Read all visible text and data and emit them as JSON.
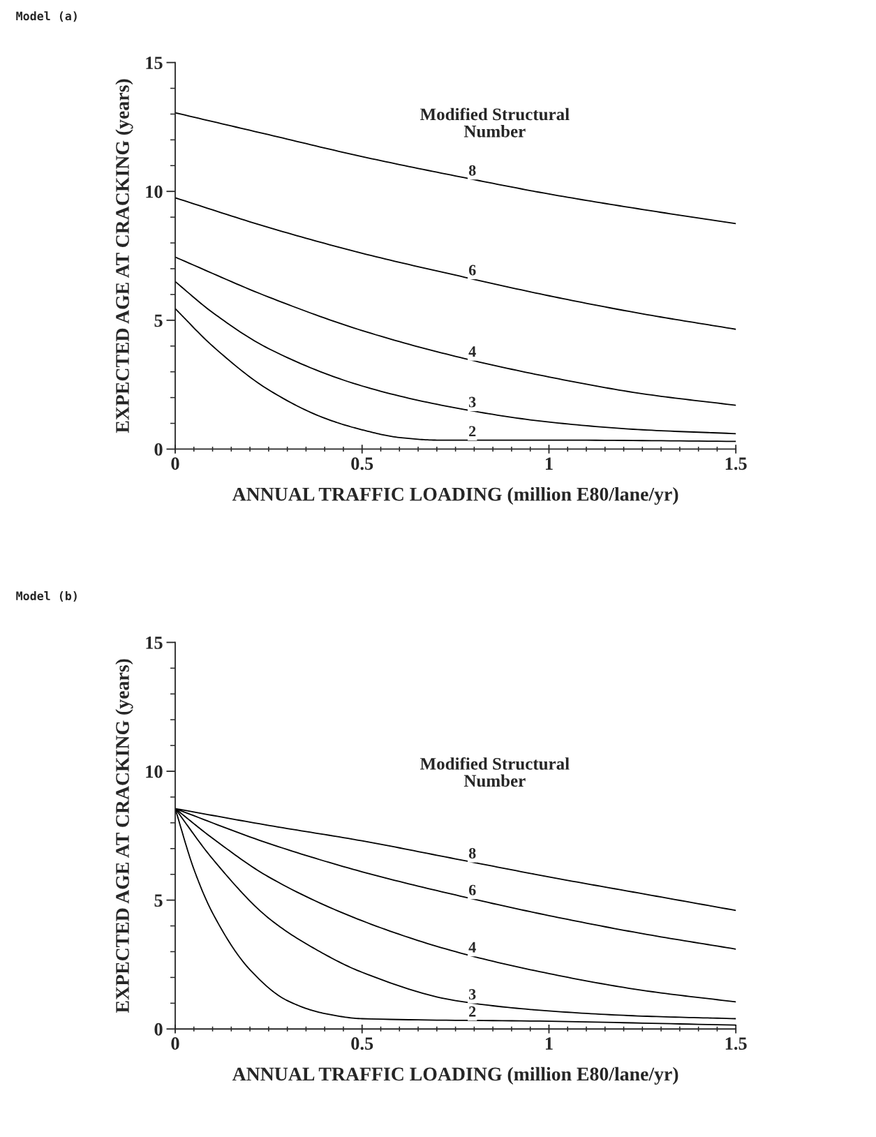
{
  "chart_data": [
    {
      "type": "line",
      "title": "Model (a)",
      "xlabel": "ANNUAL TRAFFIC LOADING (million E80/lane/yr)",
      "ylabel": "EXPECTED AGE AT CRACKING (years)",
      "xlim": [
        0,
        1.5
      ],
      "ylim": [
        0,
        15
      ],
      "xticks": [
        0,
        {
          "value": 0.05,
          "label": null
        },
        {
          "value": 0.1,
          "label": null
        },
        {
          "value": 0.15,
          "label": null
        },
        {
          "value": 0.2,
          "label": null
        },
        {
          "value": 0.25,
          "label": null
        },
        {
          "value": 0.3,
          "label": null
        },
        {
          "value": 0.35,
          "label": null
        },
        {
          "value": 0.4,
          "label": null
        },
        {
          "value": 0.45,
          "label": null
        },
        0.5,
        {
          "value": 0.55,
          "label": null
        },
        {
          "value": 0.6,
          "label": null
        },
        {
          "value": 0.65,
          "label": null
        },
        {
          "value": 0.7,
          "label": null
        },
        {
          "value": 0.75,
          "label": null
        },
        {
          "value": 0.8,
          "label": null
        },
        {
          "value": 0.85,
          "label": null
        },
        {
          "value": 0.9,
          "label": null
        },
        {
          "value": 0.95,
          "label": null
        },
        1,
        {
          "value": 1.05,
          "label": null
        },
        {
          "value": 1.1,
          "label": null
        },
        {
          "value": 1.15,
          "label": null
        },
        {
          "value": 1.2,
          "label": null
        },
        {
          "value": 1.25,
          "label": null
        },
        {
          "value": 1.3,
          "label": null
        },
        {
          "value": 1.35,
          "label": null
        },
        {
          "value": 1.4,
          "label": null
        },
        {
          "value": 1.45,
          "label": null
        },
        1.5
      ],
      "yticks": [
        0,
        {
          "value": 1,
          "label": null
        },
        {
          "value": 2,
          "label": null
        },
        {
          "value": 3,
          "label": null
        },
        {
          "value": 4,
          "label": null
        },
        5,
        {
          "value": 6,
          "label": null
        },
        {
          "value": 7,
          "label": null
        },
        {
          "value": 8,
          "label": null
        },
        {
          "value": 9,
          "label": null
        },
        10,
        {
          "value": 11,
          "label": null
        },
        {
          "value": 12,
          "label": null
        },
        {
          "value": 13,
          "label": null
        },
        {
          "value": 14,
          "label": null
        },
        15
      ],
      "grid": false,
      "legend": false,
      "series": [
        {
          "name": "8",
          "color": "#000000",
          "x": [
            0,
            0.25,
            0.5,
            0.75,
            1.0,
            1.25,
            1.5
          ],
          "values": [
            13.05,
            12.2,
            11.35,
            10.6,
            9.9,
            9.3,
            8.75
          ]
        },
        {
          "name": "6",
          "color": "#000000",
          "x": [
            0,
            0.25,
            0.5,
            0.75,
            1.0,
            1.25,
            1.5
          ],
          "values": [
            9.75,
            8.6,
            7.6,
            6.75,
            5.95,
            5.25,
            4.65
          ]
        },
        {
          "name": "4",
          "color": "#000000",
          "x": [
            0,
            0.25,
            0.5,
            0.75,
            1.0,
            1.25,
            1.5
          ],
          "values": [
            7.45,
            5.9,
            4.6,
            3.6,
            2.8,
            2.15,
            1.7
          ]
        },
        {
          "name": "3",
          "color": "#000000",
          "x": [
            0,
            0.1,
            0.25,
            0.5,
            0.75,
            1.0,
            1.25,
            1.5
          ],
          "values": [
            6.5,
            5.3,
            3.9,
            2.45,
            1.6,
            1.05,
            0.75,
            0.6
          ]
        },
        {
          "name": "2",
          "color": "#000000",
          "x": [
            0,
            0.1,
            0.25,
            0.4,
            0.5,
            0.6,
            0.7,
            1.0,
            1.5
          ],
          "values": [
            5.45,
            4.0,
            2.3,
            1.2,
            0.75,
            0.45,
            0.35,
            0.35,
            0.3
          ]
        }
      ],
      "annotations": [
        "Modified Structural\nNumber"
      ]
    },
    {
      "type": "line",
      "title": "Model (b)",
      "xlabel": "ANNUAL TRAFFIC LOADING (million E80/lane/yr)",
      "ylabel": "EXPECTED AGE AT CRACKING (years)",
      "xlim": [
        0,
        1.5
      ],
      "ylim": [
        0,
        15
      ],
      "xticks": [
        0,
        {
          "value": 0.05,
          "label": null
        },
        {
          "value": 0.1,
          "label": null
        },
        {
          "value": 0.15,
          "label": null
        },
        {
          "value": 0.2,
          "label": null
        },
        {
          "value": 0.25,
          "label": null
        },
        {
          "value": 0.3,
          "label": null
        },
        {
          "value": 0.35,
          "label": null
        },
        {
          "value": 0.4,
          "label": null
        },
        {
          "value": 0.45,
          "label": null
        },
        0.5,
        {
          "value": 0.55,
          "label": null
        },
        {
          "value": 0.6,
          "label": null
        },
        {
          "value": 0.65,
          "label": null
        },
        {
          "value": 0.7,
          "label": null
        },
        {
          "value": 0.75,
          "label": null
        },
        {
          "value": 0.8,
          "label": null
        },
        {
          "value": 0.85,
          "label": null
        },
        {
          "value": 0.9,
          "label": null
        },
        {
          "value": 0.95,
          "label": null
        },
        1,
        {
          "value": 1.05,
          "label": null
        },
        {
          "value": 1.1,
          "label": null
        },
        {
          "value": 1.15,
          "label": null
        },
        {
          "value": 1.2,
          "label": null
        },
        {
          "value": 1.25,
          "label": null
        },
        {
          "value": 1.3,
          "label": null
        },
        {
          "value": 1.35,
          "label": null
        },
        {
          "value": 1.4,
          "label": null
        },
        {
          "value": 1.45,
          "label": null
        },
        1.5
      ],
      "yticks": [
        0,
        {
          "value": 1,
          "label": null
        },
        {
          "value": 2,
          "label": null
        },
        {
          "value": 3,
          "label": null
        },
        {
          "value": 4,
          "label": null
        },
        5,
        {
          "value": 6,
          "label": null
        },
        {
          "value": 7,
          "label": null
        },
        {
          "value": 8,
          "label": null
        },
        {
          "value": 9,
          "label": null
        },
        10,
        {
          "value": 11,
          "label": null
        },
        {
          "value": 12,
          "label": null
        },
        {
          "value": 13,
          "label": null
        },
        {
          "value": 14,
          "label": null
        },
        15
      ],
      "grid": false,
      "legend": false,
      "series": [
        {
          "name": "8",
          "color": "#000000",
          "x": [
            0,
            0.25,
            0.5,
            0.75,
            1.0,
            1.25,
            1.5
          ],
          "values": [
            8.55,
            7.9,
            7.3,
            6.6,
            5.9,
            5.25,
            4.6
          ]
        },
        {
          "name": "6",
          "color": "#000000",
          "x": [
            0,
            0.25,
            0.5,
            0.75,
            1.0,
            1.25,
            1.5
          ],
          "values": [
            8.55,
            7.2,
            6.1,
            5.2,
            4.4,
            3.7,
            3.1
          ]
        },
        {
          "name": "4",
          "color": "#000000",
          "x": [
            0,
            0.1,
            0.25,
            0.5,
            0.75,
            1.0,
            1.25,
            1.5
          ],
          "values": [
            8.55,
            7.4,
            5.9,
            4.2,
            3.0,
            2.15,
            1.5,
            1.05
          ]
        },
        {
          "name": "3",
          "color": "#000000",
          "x": [
            0,
            0.1,
            0.25,
            0.375,
            0.5,
            0.75,
            1.0,
            1.25,
            1.5
          ],
          "values": [
            8.55,
            6.6,
            4.3,
            3.1,
            2.2,
            1.1,
            0.7,
            0.5,
            0.4
          ]
        },
        {
          "name": "2",
          "color": "#000000",
          "x": [
            0,
            0.05,
            0.1,
            0.2,
            0.3,
            0.4,
            0.5,
            1.0,
            1.5
          ],
          "values": [
            8.55,
            6.2,
            4.5,
            2.3,
            1.1,
            0.6,
            0.4,
            0.3,
            0.15
          ]
        }
      ],
      "annotations": [
        "Modified Structural\nNumber"
      ]
    }
  ]
}
